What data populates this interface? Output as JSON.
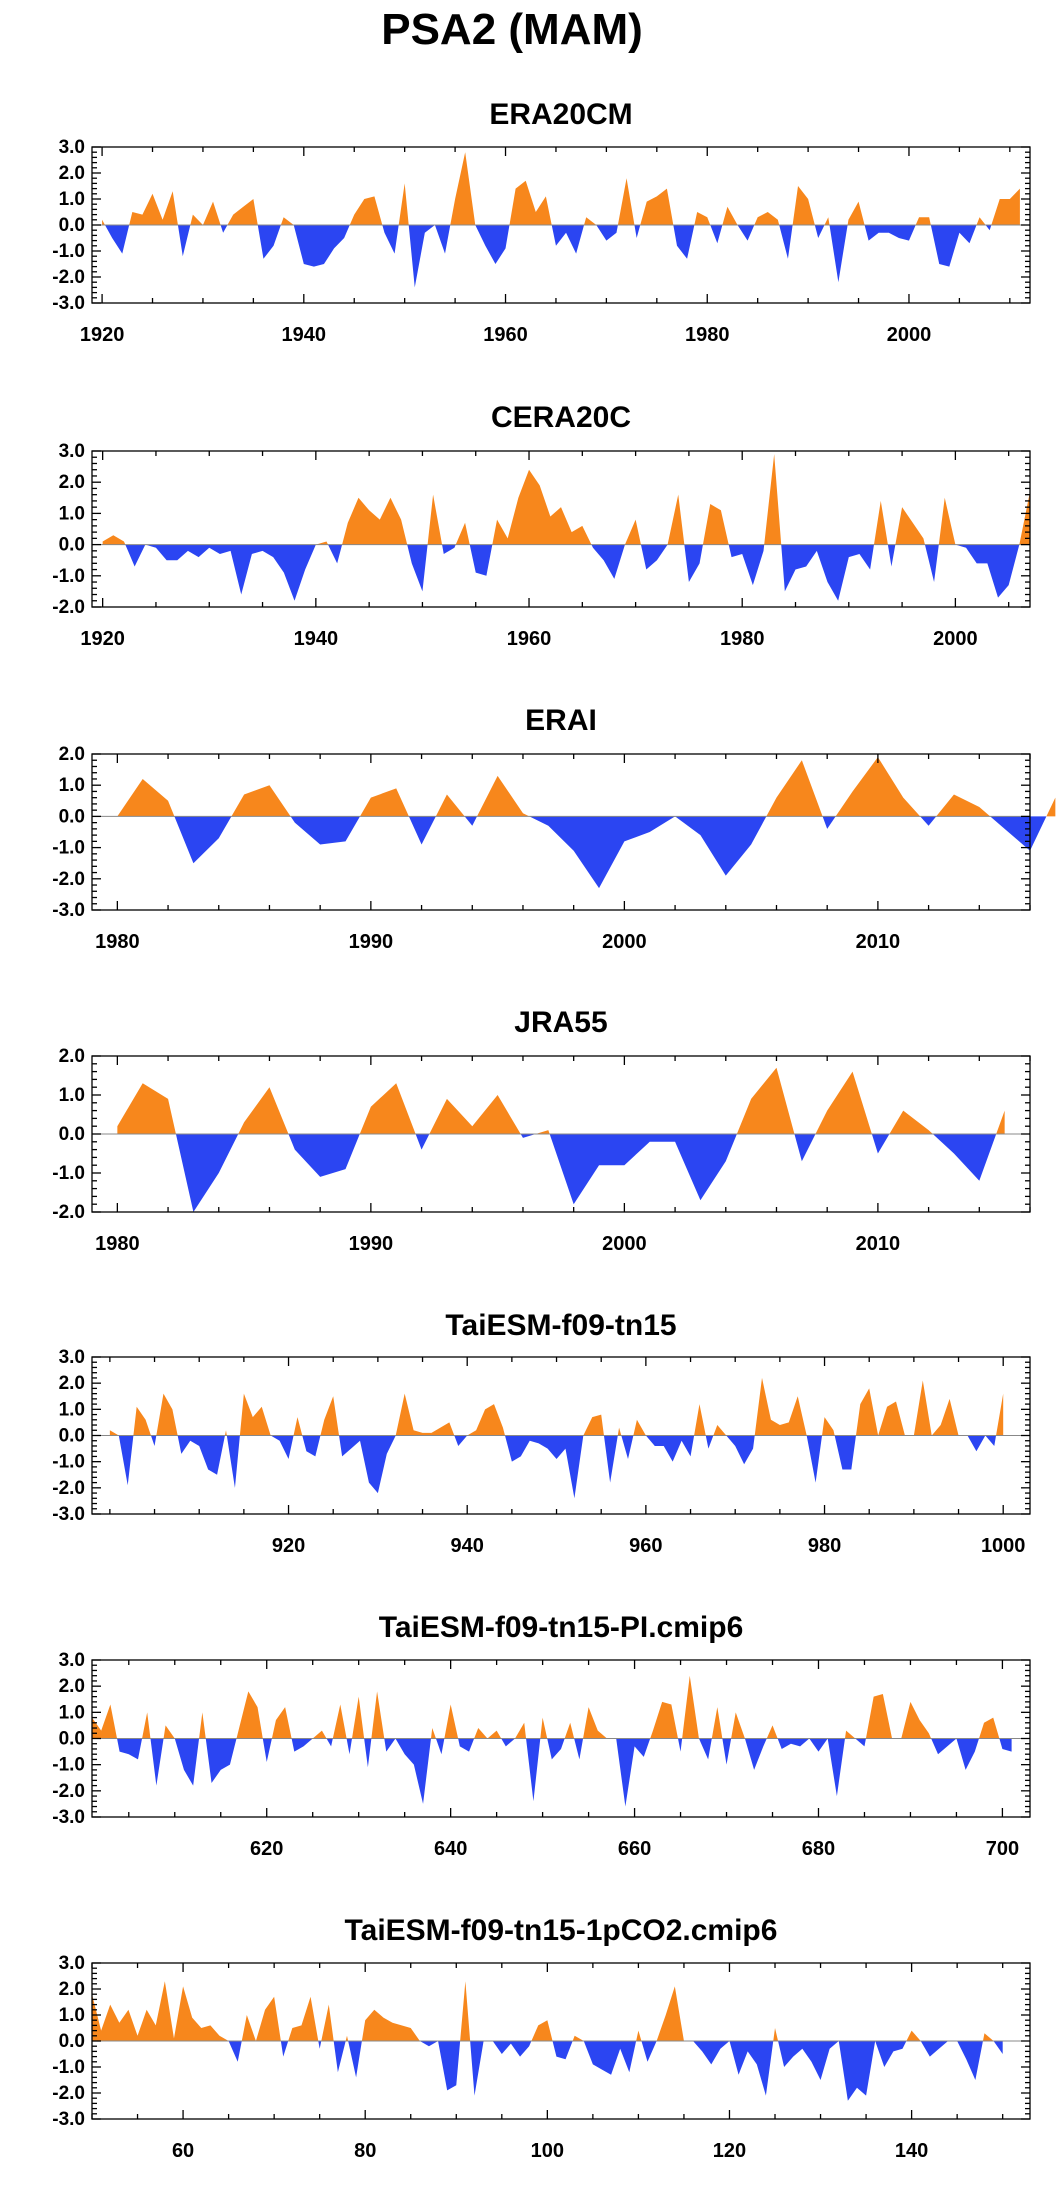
{
  "title": "PSA2 (MAM)",
  "colors": {
    "positive": "#f7871c",
    "negative": "#2b45f2"
  },
  "chart_data": [
    {
      "type": "area",
      "title": "ERA20CM",
      "xlim": [
        1919,
        2012
      ],
      "ylim": [
        -3,
        3
      ],
      "xticks": [
        1920,
        1940,
        1960,
        1980,
        2000
      ],
      "yticks": [
        "3.0",
        "2.0",
        "1.0",
        "0.0",
        "-1.0",
        "-2.0",
        "-3.0"
      ],
      "x_start": 1920,
      "values": [
        0.2,
        -0.5,
        -1.1,
        0.5,
        0.4,
        1.2,
        0.2,
        1.3,
        -1.2,
        0.4,
        0.0,
        0.9,
        -0.3,
        0.4,
        0.7,
        1.0,
        -1.3,
        -0.8,
        0.3,
        0.0,
        -1.5,
        -1.6,
        -1.5,
        -0.9,
        -0.5,
        0.4,
        1.0,
        1.1,
        -0.3,
        -1.1,
        1.6,
        -2.4,
        -0.3,
        0.0,
        -1.1,
        1.0,
        2.8,
        0.0,
        -0.8,
        -1.5,
        -0.9,
        1.4,
        1.7,
        0.5,
        1.1,
        -0.8,
        -0.3,
        -1.1,
        0.3,
        0.0,
        -0.6,
        -0.3,
        1.8,
        -0.5,
        0.9,
        1.1,
        1.4,
        -0.8,
        -1.3,
        0.5,
        0.3,
        -0.7,
        0.7,
        0.0,
        -0.6,
        0.3,
        0.5,
        0.2,
        -1.3,
        1.5,
        1.0,
        -0.5,
        0.3,
        -2.2,
        0.2,
        0.9,
        -0.6,
        -0.3,
        -0.3,
        -0.5,
        -0.6,
        0.3,
        0.3,
        -1.5,
        -1.6,
        -0.3,
        -0.7,
        0.3,
        -0.2,
        1.0,
        1.0,
        1.4
      ]
    },
    {
      "type": "area",
      "title": "CERA20C",
      "xlim": [
        1919,
        2007
      ],
      "ylim": [
        -2,
        3
      ],
      "xticks": [
        1920,
        1940,
        1960,
        1980,
        2000
      ],
      "yticks": [
        "3.0",
        "2.0",
        "1.0",
        "0.0",
        "-1.0",
        "-2.0"
      ],
      "x_start": 1920,
      "values": [
        0.1,
        0.3,
        0.1,
        -0.7,
        0.0,
        -0.1,
        -0.5,
        -0.5,
        -0.2,
        -0.4,
        -0.1,
        -0.3,
        -0.2,
        -1.6,
        -0.3,
        -0.2,
        -0.4,
        -0.9,
        -1.8,
        -0.8,
        0.0,
        0.1,
        -0.6,
        0.7,
        1.5,
        1.1,
        0.8,
        1.5,
        0.8,
        -0.6,
        -1.5,
        1.6,
        -0.3,
        -0.1,
        0.7,
        -0.9,
        -1.0,
        0.8,
        0.2,
        1.5,
        2.4,
        1.9,
        0.9,
        1.2,
        0.4,
        0.6,
        -0.1,
        -0.5,
        -1.1,
        0.0,
        0.8,
        -0.8,
        -0.5,
        0.0,
        1.6,
        -1.2,
        -0.6,
        1.3,
        1.1,
        -0.4,
        -0.3,
        -1.3,
        -0.2,
        2.9,
        -1.5,
        -0.8,
        -0.7,
        -0.2,
        -1.2,
        -1.8,
        -0.4,
        -0.3,
        -0.8,
        1.4,
        -0.7,
        1.2,
        0.7,
        0.2,
        -1.2,
        1.5,
        0.0,
        -0.1,
        -0.6,
        -0.6,
        -1.7,
        -1.3,
        0.0,
        1.7
      ]
    },
    {
      "type": "area",
      "title": "ERAI",
      "xlim": [
        1979,
        2016
      ],
      "ylim": [
        -3,
        2
      ],
      "xticks": [
        1980,
        1990,
        2000,
        2010
      ],
      "yticks": [
        "2.0",
        "1.0",
        "0.0",
        "-1.0",
        "-2.0",
        "-3.0"
      ],
      "x_start": 1980,
      "values": [
        0.0,
        1.2,
        0.5,
        -1.5,
        -0.7,
        0.7,
        1.0,
        -0.2,
        -0.9,
        -0.8,
        0.6,
        0.9,
        -0.9,
        0.7,
        -0.3,
        1.3,
        0.1,
        -0.3,
        -1.1,
        -2.3,
        -0.8,
        -0.5,
        0.0,
        -0.6,
        -1.9,
        -0.9,
        0.6,
        1.8,
        -0.4,
        0.8,
        1.9,
        0.6,
        -0.3,
        0.7,
        0.3,
        -0.4,
        -1.1,
        0.6
      ]
    },
    {
      "type": "area",
      "title": "JRA55",
      "xlim": [
        1979,
        2016
      ],
      "ylim": [
        -2,
        2
      ],
      "xticks": [
        1980,
        1990,
        2000,
        2010
      ],
      "yticks": [
        "2.0",
        "1.0",
        "0.0",
        "-1.0",
        "-2.0"
      ],
      "x_start": 1980,
      "values": [
        0.2,
        1.3,
        0.9,
        -2.0,
        -1.0,
        0.3,
        1.2,
        -0.4,
        -1.1,
        -0.9,
        0.7,
        1.3,
        -0.4,
        0.9,
        0.2,
        1.0,
        -0.1,
        0.1,
        -1.8,
        -0.8,
        -0.8,
        -0.2,
        -0.2,
        -1.7,
        -0.7,
        0.9,
        1.7,
        -0.7,
        0.6,
        1.6,
        -0.5,
        0.6,
        0.1,
        -0.5,
        -1.2,
        0.6
      ]
    },
    {
      "type": "area",
      "title": "TaiESM-f09-tn15",
      "xlim": [
        898,
        1003
      ],
      "ylim": [
        -3,
        3
      ],
      "xticks": [
        920,
        940,
        960,
        980,
        1000
      ],
      "yticks": [
        "3.0",
        "2.0",
        "1.0",
        "0.0",
        "-1.0",
        "-2.0",
        "-3.0"
      ],
      "x_start": 900,
      "values": [
        0.2,
        0.0,
        -1.9,
        1.1,
        0.6,
        -0.4,
        1.6,
        1.0,
        -0.7,
        -0.2,
        -0.4,
        -1.3,
        -1.5,
        0.2,
        -2.0,
        1.6,
        0.7,
        1.1,
        0.0,
        -0.2,
        -0.9,
        0.7,
        -0.6,
        -0.8,
        0.6,
        1.5,
        -0.8,
        -0.5,
        -0.2,
        -1.8,
        -2.2,
        -0.7,
        0.0,
        1.6,
        0.2,
        0.1,
        0.1,
        0.3,
        0.5,
        -0.4,
        0.0,
        0.2,
        1.0,
        1.2,
        0.3,
        -1.0,
        -0.8,
        -0.2,
        -0.3,
        -0.5,
        -0.9,
        -0.5,
        -2.4,
        0.0,
        0.7,
        0.8,
        -1.8,
        0.3,
        -0.9,
        0.6,
        0.0,
        -0.4,
        -0.4,
        -1.0,
        -0.2,
        -0.8,
        1.2,
        -0.5,
        0.4,
        0.0,
        -0.4,
        -1.1,
        -0.5,
        2.2,
        0.6,
        0.4,
        0.5,
        1.5,
        0.0,
        -1.8,
        0.7,
        0.2,
        -1.3,
        -1.3,
        1.2,
        1.8,
        0.0,
        1.1,
        1.3,
        0.0,
        0.0,
        2.1,
        0.0,
        0.4,
        1.4,
        0.0,
        0.0,
        -0.6,
        0.0,
        -0.4,
        1.6
      ]
    },
    {
      "type": "area",
      "title": "TaiESM-f09-tn15-PI.cmip6",
      "xlim": [
        601,
        703
      ],
      "ylim": [
        -3,
        3
      ],
      "xticks": [
        620,
        640,
        660,
        680,
        700
      ],
      "yticks": [
        "3.0",
        "2.0",
        "1.0",
        "0.0",
        "-1.0",
        "-2.0",
        "-3.0"
      ],
      "x_start": 601,
      "values": [
        0.8,
        0.3,
        1.3,
        -0.5,
        -0.6,
        -0.8,
        1.0,
        -1.8,
        0.5,
        0.0,
        -1.2,
        -1.8,
        1.0,
        -1.7,
        -1.2,
        -1.0,
        0.4,
        1.8,
        1.2,
        -0.9,
        0.7,
        1.2,
        -0.5,
        -0.3,
        0.0,
        0.3,
        -0.3,
        1.3,
        -0.6,
        1.6,
        -1.1,
        1.8,
        -0.5,
        0.0,
        -0.6,
        -1.0,
        -2.5,
        0.4,
        -0.6,
        1.3,
        -0.3,
        -0.5,
        0.4,
        0.0,
        0.3,
        -0.3,
        0.0,
        0.6,
        -2.4,
        0.8,
        -0.8,
        -0.4,
        0.6,
        -0.8,
        1.2,
        0.3,
        0.0,
        0.0,
        -2.6,
        -0.3,
        -0.7,
        0.3,
        1.4,
        1.3,
        -0.5,
        2.4,
        0.0,
        -0.8,
        1.2,
        -1.0,
        1.0,
        0.0,
        -1.2,
        -0.3,
        0.5,
        -0.4,
        -0.2,
        -0.3,
        0.0,
        -0.5,
        0.0,
        -2.2,
        0.3,
        0.0,
        -0.3,
        1.6,
        1.7,
        0.0,
        0.0,
        1.4,
        0.7,
        0.2,
        -0.6,
        -0.3,
        0.0,
        -1.2,
        -0.5,
        0.6,
        0.8,
        -0.4,
        -0.5
      ]
    },
    {
      "type": "area",
      "title": "TaiESM-f09-tn15-1pCO2.cmip6",
      "xlim": [
        50,
        153
      ],
      "ylim": [
        -3,
        3
      ],
      "xticks": [
        60,
        80,
        100,
        120,
        140
      ],
      "yticks": [
        "3.0",
        "2.0",
        "1.0",
        "0.0",
        "-1.0",
        "-2.0",
        "-3.0"
      ],
      "x_start": 50,
      "values": [
        1.8,
        0.4,
        1.4,
        0.7,
        1.2,
        0.2,
        1.2,
        0.6,
        2.3,
        0.1,
        2.1,
        0.9,
        0.5,
        0.6,
        0.2,
        0.0,
        -0.8,
        1.0,
        0.0,
        1.2,
        1.7,
        -0.6,
        0.5,
        0.6,
        1.7,
        -0.3,
        1.4,
        -1.2,
        0.2,
        -1.4,
        0.8,
        1.2,
        0.9,
        0.7,
        0.6,
        0.5,
        0.0,
        -0.2,
        0.0,
        -1.9,
        -1.7,
        2.3,
        -2.1,
        0.0,
        0.0,
        -0.5,
        -0.1,
        -0.6,
        -0.2,
        0.6,
        0.8,
        -0.6,
        -0.7,
        0.2,
        0.0,
        -0.9,
        -1.1,
        -1.3,
        -0.3,
        -1.2,
        0.4,
        -0.8,
        0.0,
        1.0,
        2.1,
        0.0,
        0.0,
        -0.4,
        -0.9,
        -0.3,
        0.0,
        -1.3,
        -0.4,
        -0.9,
        -2.1,
        0.5,
        -1.0,
        -0.6,
        -0.3,
        -0.8,
        -1.5,
        -0.3,
        0.0,
        -2.3,
        -1.8,
        -2.1,
        0.0,
        -1.0,
        -0.4,
        -0.3,
        0.4,
        0.0,
        -0.6,
        -0.3,
        0.0,
        0.0,
        -0.7,
        -1.5,
        0.3,
        0.0,
        -0.5
      ]
    }
  ]
}
